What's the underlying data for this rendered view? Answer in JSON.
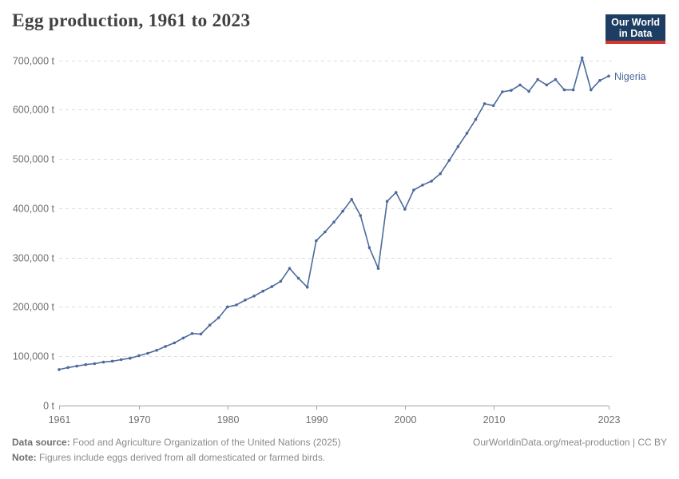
{
  "header": {
    "title": "Egg production, 1961 to 2023"
  },
  "logo": {
    "line1": "Our World",
    "line2": "in Data",
    "bg": "#1d3d63",
    "accent": "#d7382d"
  },
  "chart_data": {
    "type": "line",
    "title": "Egg production, 1961 to 2023",
    "xlabel": "",
    "ylabel": "",
    "unit": "t",
    "grid": "horizontal-dashed",
    "legend_position": "end-of-line-label",
    "xlim": [
      1961,
      2023
    ],
    "ylim": [
      0,
      700000
    ],
    "x_ticks": [
      {
        "value": 1961,
        "label": "1961"
      },
      {
        "value": 1970,
        "label": "1970"
      },
      {
        "value": 1980,
        "label": "1980"
      },
      {
        "value": 1990,
        "label": "1990"
      },
      {
        "value": 2000,
        "label": "2000"
      },
      {
        "value": 2010,
        "label": "2010"
      },
      {
        "value": 2023,
        "label": "2023"
      }
    ],
    "y_ticks": [
      {
        "value": 0,
        "label": "0 t"
      },
      {
        "value": 100000,
        "label": "100,000 t"
      },
      {
        "value": 200000,
        "label": "200,000 t"
      },
      {
        "value": 300000,
        "label": "300,000 t"
      },
      {
        "value": 400000,
        "label": "400,000 t"
      },
      {
        "value": 500000,
        "label": "500,000 t"
      },
      {
        "value": 600000,
        "label": "600,000 t"
      },
      {
        "value": 700000,
        "label": "700,000 t"
      }
    ],
    "series": [
      {
        "name": "Nigeria",
        "color": "#4C6A9C",
        "x": [
          1961,
          1962,
          1963,
          1964,
          1965,
          1966,
          1967,
          1968,
          1969,
          1970,
          1971,
          1972,
          1973,
          1974,
          1975,
          1976,
          1977,
          1978,
          1979,
          1980,
          1981,
          1982,
          1983,
          1984,
          1985,
          1986,
          1987,
          1988,
          1989,
          1990,
          1991,
          1992,
          1993,
          1994,
          1995,
          1996,
          1997,
          1998,
          1999,
          2000,
          2001,
          2002,
          2003,
          2004,
          2005,
          2006,
          2007,
          2008,
          2009,
          2010,
          2011,
          2012,
          2013,
          2014,
          2015,
          2016,
          2017,
          2018,
          2019,
          2020,
          2021,
          2022,
          2023
        ],
        "values": [
          73000,
          77000,
          80000,
          83000,
          85000,
          88000,
          90000,
          93000,
          96000,
          101000,
          106000,
          112000,
          120000,
          127000,
          137000,
          146000,
          145000,
          163000,
          178000,
          200000,
          204000,
          214000,
          222000,
          232000,
          241000,
          252000,
          278000,
          258000,
          240000,
          334000,
          352000,
          372000,
          394000,
          418000,
          385000,
          320000,
          278000,
          414000,
          432000,
          398000,
          437000,
          447000,
          455000,
          470000,
          497000,
          525000,
          552000,
          580000,
          612000,
          608000,
          636000,
          639000,
          650000,
          637000,
          661000,
          650000,
          661000,
          640000,
          640000,
          705000,
          640000,
          659000,
          668000
        ]
      }
    ]
  },
  "footer": {
    "source_label": "Data source:",
    "source_text": "Food and Agriculture Organization of the United Nations (2025)",
    "note_label": "Note:",
    "note_text": "Figures include eggs derived from all domesticated or farmed birds.",
    "credit": "OurWorldinData.org/meat-production | CC BY"
  }
}
